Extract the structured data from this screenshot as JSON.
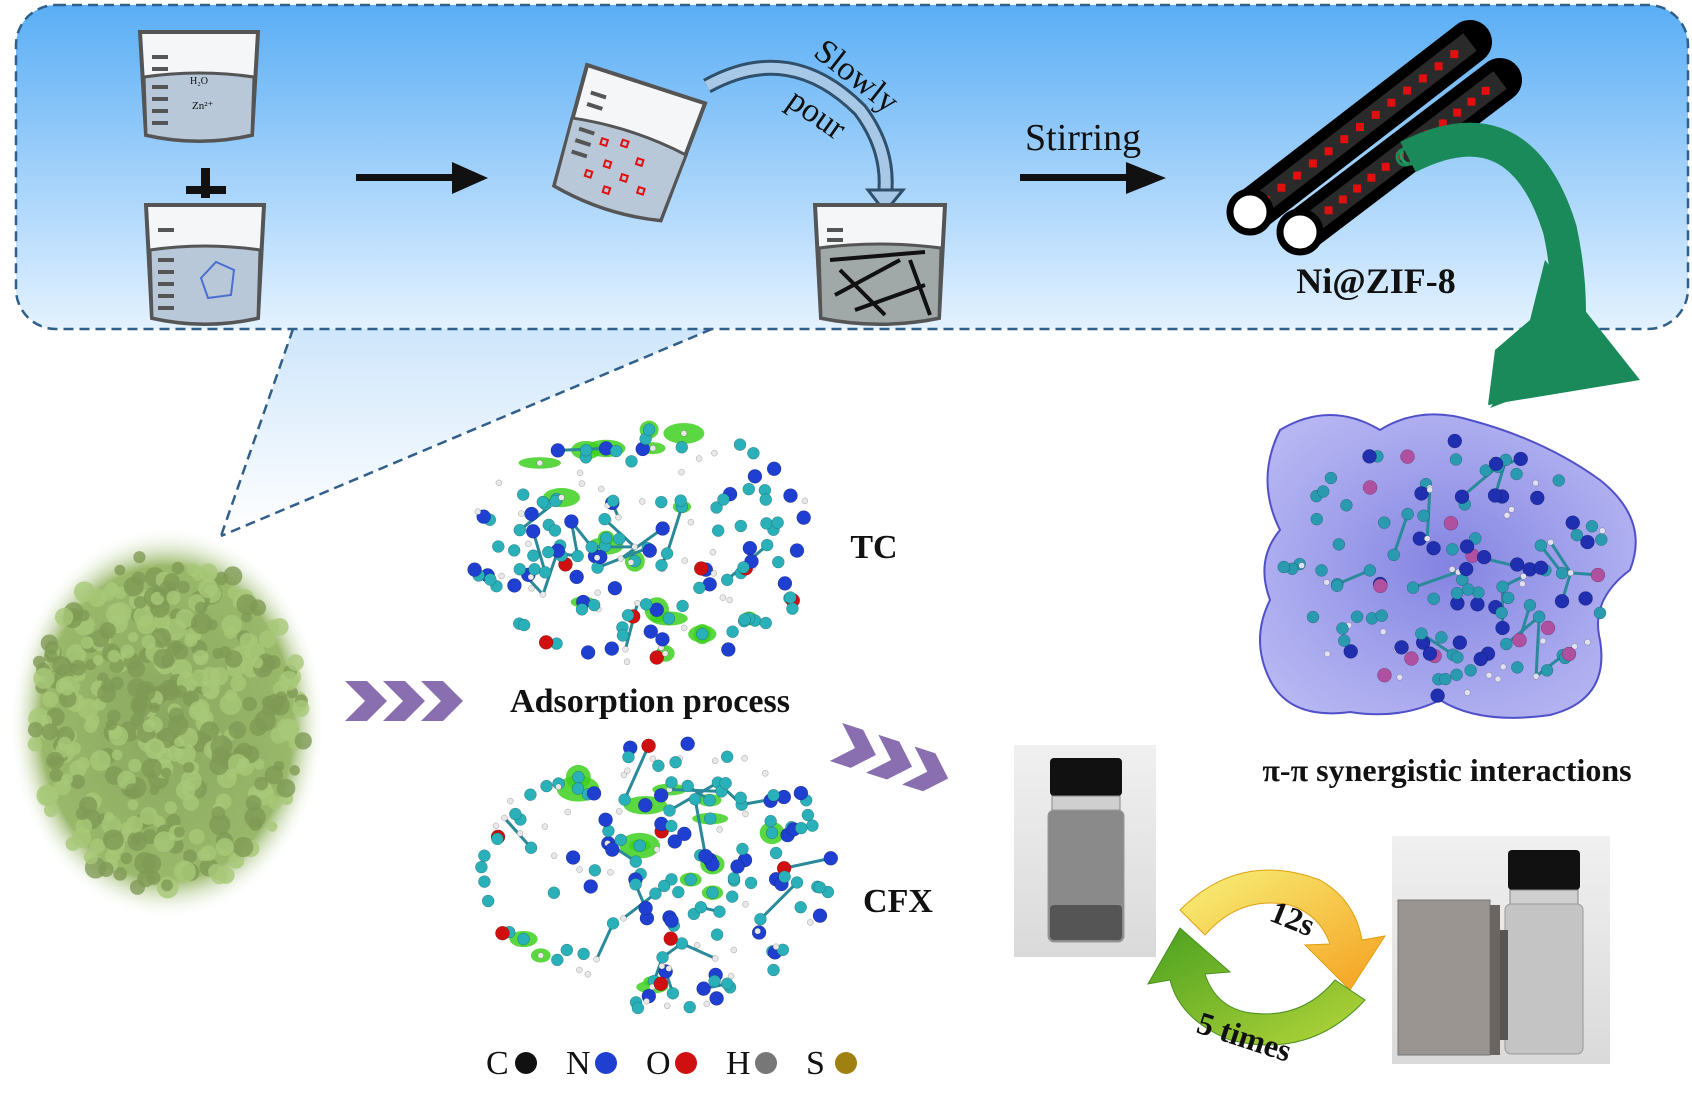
{
  "synthesis": {
    "beaker_top": {
      "ion": "Zn²⁺",
      "solvent": "H₂O"
    },
    "pour_label_1": "Slowly",
    "pour_label_2": "pour",
    "stirring_label": "Stirring",
    "product_label": "Ni@ZIF-8"
  },
  "adsorption": {
    "process_label": "Adsorption process",
    "molecule_1": "TC",
    "molecule_2": "CFX"
  },
  "interaction_label": "π-π synergistic interactions",
  "recycling": {
    "time_label": "12s",
    "cycles_label": "5 times"
  },
  "legend": [
    {
      "symbol": "C",
      "color": "#111111"
    },
    {
      "symbol": "N",
      "color": "#1f3fd0"
    },
    {
      "symbol": "O",
      "color": "#d01010"
    },
    {
      "symbol": "H",
      "color": "#777777"
    },
    {
      "symbol": "S",
      "color": "#a08010"
    }
  ],
  "colors": {
    "panel_top": "#5aaef5",
    "panel_bottom": "#dcefff",
    "green_arrow": "#1a8a5a",
    "chevron": "#8a6fb0",
    "sem_green": "#9ab86a",
    "surface_purple": "#6a6ae0"
  }
}
